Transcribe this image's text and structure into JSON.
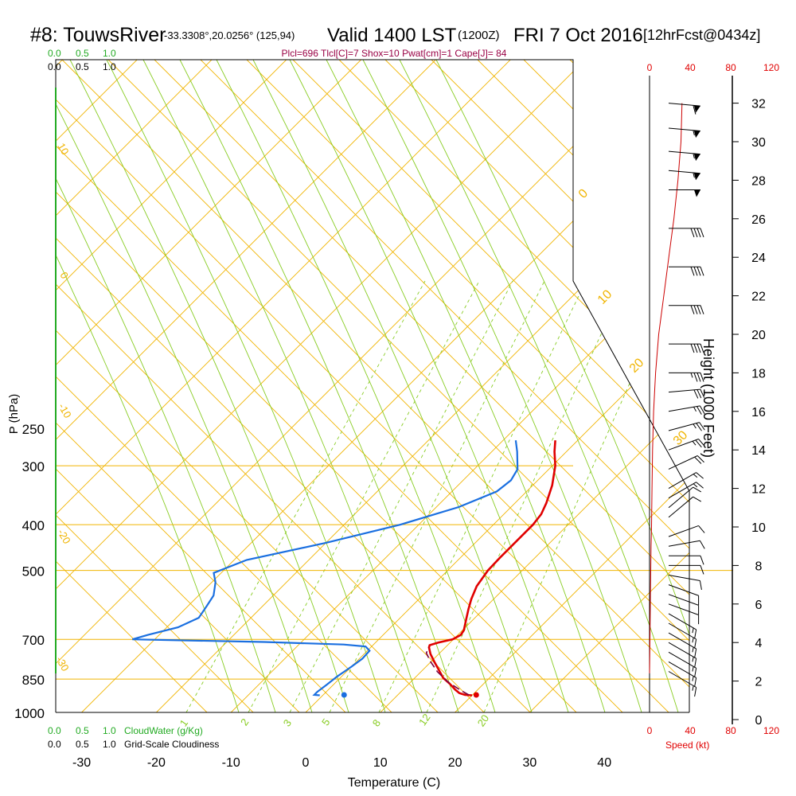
{
  "title": {
    "station": "#8: TouwsRiver",
    "coords": "-33.3308°,20.0256° (125,94)",
    "valid": "Valid 1400 LST",
    "utc": "(1200Z)",
    "date": "FRI 7 Oct 2016",
    "fcst": "[12hrFcst@0434z]"
  },
  "indices": "Plcl=696 Tlcl[C]=7 Shox=10 Pwat[cm]=1 Cape[J]= 84",
  "colors": {
    "isobar": "#f0b400",
    "dry_adiabat": "#f0b400",
    "moist_adiabat": "#88cc22",
    "mixing_ratio": "#88cc22",
    "temperature": "#e00000",
    "dewpoint": "#1a6fe0",
    "parcel": "#7a0040",
    "height": "#cc0000",
    "cloud": "#22aa22",
    "wind": "#000000"
  },
  "top_scale": {
    "cloud_ticks": [
      "0.0",
      "0.5",
      "1.0"
    ],
    "cover_ticks": [
      "0.0",
      "0.5",
      "1.0"
    ]
  },
  "bottom_scale": {
    "cloud_ticks": [
      "0.0",
      "0.5",
      "1.0"
    ],
    "cloud_label": "CloudWater (g/Kg)",
    "cover_ticks": [
      "0.0",
      "0.5",
      "1.0"
    ],
    "cover_label": "Grid-Scale Cloudiness"
  },
  "speed_scale": {
    "ticks": [
      "0",
      "40",
      "80",
      "120"
    ],
    "label": "Speed (kt)"
  },
  "chart_data": {
    "type": "line",
    "subtype": "skew-T log-P sounding",
    "xlabel": "Temperature (C)",
    "ylabel": "P (hPa)",
    "y2label": "Height (1000 Feet)",
    "xlim": [
      -34,
      36
    ],
    "ylim": [
      1000,
      250
    ],
    "y_scale": "log",
    "x_ticks": [
      -30,
      -20,
      -10,
      0,
      10,
      20,
      30,
      40
    ],
    "y_ticks": [
      250,
      300,
      400,
      500,
      700,
      850,
      1000
    ],
    "height_ticks": [
      0,
      2,
      4,
      6,
      8,
      10,
      12,
      14,
      16,
      18,
      20,
      22,
      24,
      26,
      28,
      30,
      32
    ],
    "mixing_ratio_labels": [
      "1",
      "2",
      "3",
      "5",
      "8",
      "12",
      "20"
    ],
    "dry_adiabat_labels": [
      "0",
      "10",
      "20",
      "30"
    ],
    "moist_adiabat_labels": [
      "10",
      "0",
      "-10",
      "-20",
      "-30"
    ],
    "series": [
      {
        "name": "Temperature",
        "points": [
          [
            20.0,
            920
          ],
          [
            19.0,
            918
          ],
          [
            18.0,
            910
          ],
          [
            17.0,
            895
          ],
          [
            15.5,
            870
          ],
          [
            13.8,
            845
          ],
          [
            12.0,
            810
          ],
          [
            10.4,
            780
          ],
          [
            8.9,
            752
          ],
          [
            7.8,
            728
          ],
          [
            7.6,
            720
          ],
          [
            8.4,
            711
          ],
          [
            9.9,
            700
          ],
          [
            10.4,
            685
          ],
          [
            10.2,
            670
          ],
          [
            9.2,
            640
          ],
          [
            8.0,
            605
          ],
          [
            7.0,
            575
          ],
          [
            6.0,
            540
          ],
          [
            5.4,
            500
          ],
          [
            5.3,
            470
          ],
          [
            5.3,
            440
          ],
          [
            5.3,
            420
          ],
          [
            5.3,
            400
          ],
          [
            5.0,
            380
          ],
          [
            4.2,
            360
          ],
          [
            2.6,
            330
          ],
          [
            0.4,
            300
          ],
          [
            -1.6,
            280
          ],
          [
            -3.0,
            265
          ]
        ]
      },
      {
        "name": "Dewpoint",
        "points": [
          [
            -0.4,
            920
          ],
          [
            -1.2,
            918
          ],
          [
            -1.2,
            905
          ],
          [
            -0.9,
            875
          ],
          [
            -0.6,
            840
          ],
          [
            0.0,
            800
          ],
          [
            0.4,
            770
          ],
          [
            0.3,
            740
          ],
          [
            -0.8,
            725
          ],
          [
            -4.0,
            718
          ],
          [
            -15.0,
            709
          ],
          [
            -33.0,
            700
          ],
          [
            -31.5,
            685
          ],
          [
            -28.5,
            660
          ],
          [
            -27.0,
            630
          ],
          [
            -27.5,
            595
          ],
          [
            -28.0,
            565
          ],
          [
            -29.5,
            530
          ],
          [
            -31.0,
            506
          ],
          [
            -28.3,
            475
          ],
          [
            -20.0,
            437
          ],
          [
            -12.5,
            400
          ],
          [
            -7.0,
            367
          ],
          [
            -4.0,
            340
          ],
          [
            -3.6,
            322
          ],
          [
            -4.2,
            305
          ],
          [
            -6.6,
            280
          ],
          [
            -8.3,
            265
          ]
        ]
      },
      {
        "name": "Parcel",
        "points": [
          [
            19.5,
            918
          ],
          [
            18.0,
            900
          ],
          [
            15.2,
            865
          ],
          [
            12.2,
            820
          ],
          [
            9.9,
            780
          ],
          [
            8.2,
            748
          ],
          [
            7.8,
            728
          ]
        ]
      }
    ],
    "markers": [
      {
        "name": "surface temperature",
        "x": 20.5,
        "p": 918
      },
      {
        "name": "surface dewpoint",
        "x": 2.8,
        "p": 918
      }
    ],
    "height_profile": [
      [
        0,
        2.4
      ],
      [
        0.8,
        6
      ],
      [
        1.5,
        9
      ],
      [
        2,
        10
      ],
      [
        2.4,
        12
      ],
      [
        3,
        14
      ],
      [
        4,
        16
      ],
      [
        6,
        18
      ],
      [
        9,
        20
      ],
      [
        14,
        22
      ],
      [
        19,
        24
      ],
      [
        24,
        26
      ],
      [
        28,
        28
      ],
      [
        31,
        30
      ],
      [
        32,
        32
      ]
    ],
    "wind_profile": [
      {
        "h": 2.5,
        "speed": 15,
        "dir": 300
      },
      {
        "h": 3,
        "speed": 15,
        "dir": 300
      },
      {
        "h": 3.5,
        "speed": 15,
        "dir": 300
      },
      {
        "h": 4,
        "speed": 15,
        "dir": 300
      },
      {
        "h": 4.5,
        "speed": 15,
        "dir": 300
      },
      {
        "h": 5,
        "speed": 15,
        "dir": 300
      },
      {
        "h": 5.5,
        "speed": 15,
        "dir": 300
      },
      {
        "h": 6,
        "speed": 10,
        "dir": 290
      },
      {
        "h": 6.5,
        "speed": 10,
        "dir": 290
      },
      {
        "h": 7,
        "speed": 10,
        "dir": 290
      },
      {
        "h": 7.5,
        "speed": 10,
        "dir": 280
      },
      {
        "h": 8,
        "speed": 10,
        "dir": 270
      },
      {
        "h": 8.5,
        "speed": 10,
        "dir": 270
      },
      {
        "h": 9,
        "speed": 10,
        "dir": 260
      },
      {
        "h": 9.5,
        "speed": 10,
        "dir": 250
      },
      {
        "h": 10.5,
        "speed": 10,
        "dir": 230
      },
      {
        "h": 11,
        "speed": 10,
        "dir": 230
      },
      {
        "h": 11.5,
        "speed": 15,
        "dir": 240
      },
      {
        "h": 12,
        "speed": 15,
        "dir": 240
      },
      {
        "h": 13,
        "speed": 20,
        "dir": 245
      },
      {
        "h": 14,
        "speed": 25,
        "dir": 250
      },
      {
        "h": 15,
        "speed": 25,
        "dir": 255
      },
      {
        "h": 16,
        "speed": 25,
        "dir": 260
      },
      {
        "h": 17,
        "speed": 30,
        "dir": 265
      },
      {
        "h": 18,
        "speed": 35,
        "dir": 270
      },
      {
        "h": 19.5,
        "speed": 40,
        "dir": 270
      },
      {
        "h": 21.5,
        "speed": 40,
        "dir": 270
      },
      {
        "h": 23.5,
        "speed": 40,
        "dir": 270
      },
      {
        "h": 25.5,
        "speed": 40,
        "dir": 270
      },
      {
        "h": 27.5,
        "speed": 50,
        "dir": 270
      },
      {
        "h": 28.5,
        "speed": 55,
        "dir": 275
      },
      {
        "h": 29.5,
        "speed": 55,
        "dir": 275
      },
      {
        "h": 30.7,
        "speed": 55,
        "dir": 275
      },
      {
        "h": 32,
        "speed": 60,
        "dir": 275
      }
    ]
  }
}
